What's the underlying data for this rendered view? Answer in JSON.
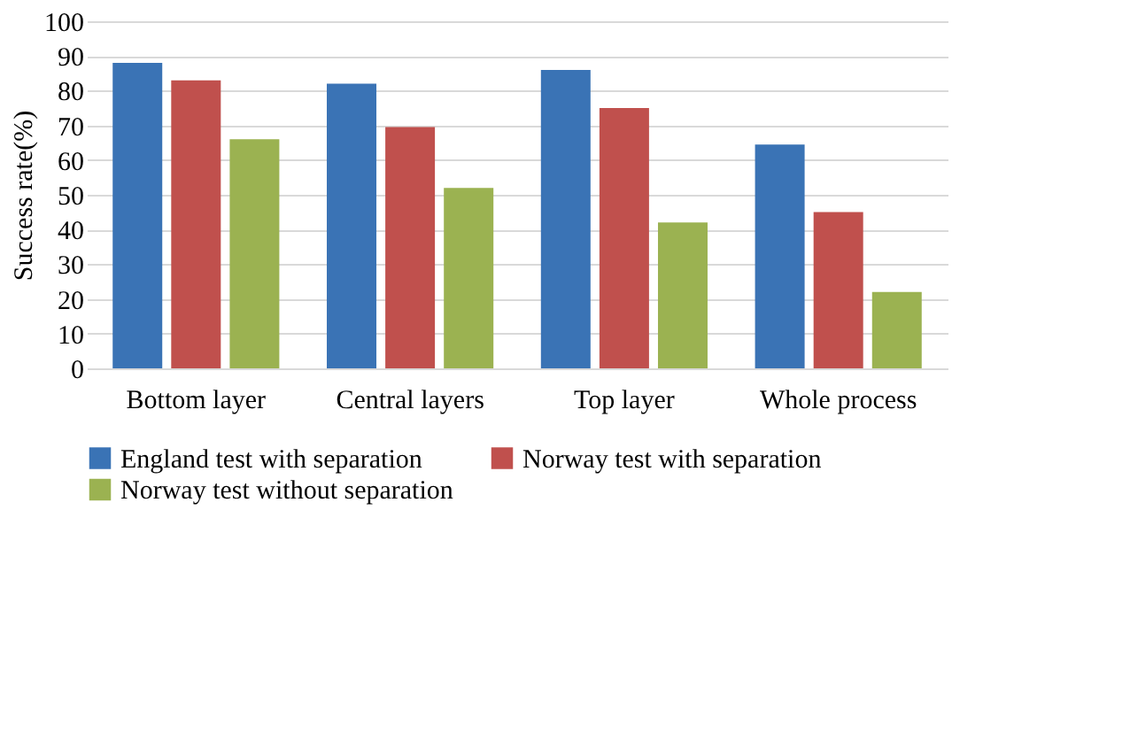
{
  "chart_data": {
    "type": "bar",
    "ylabel": "Success rate(%)",
    "categories": [
      "Bottom layer",
      "Central layers",
      "Top layer",
      "Whole process"
    ],
    "series": [
      {
        "name": "England test with separation",
        "color": "#3a73b5",
        "values": [
          88,
          82,
          86,
          64.5
        ]
      },
      {
        "name": "Norway test with separation",
        "color": "#c0504d",
        "values": [
          83,
          69.5,
          75,
          45
        ]
      },
      {
        "name": "Norway test without separation",
        "color": "#9bb251",
        "values": [
          66,
          52,
          42,
          22
        ]
      }
    ],
    "ylim": [
      0,
      100
    ],
    "yticks": [
      0,
      10,
      20,
      30,
      40,
      50,
      60,
      70,
      80,
      90,
      100
    ],
    "grid": "y",
    "legend": "bottom"
  }
}
